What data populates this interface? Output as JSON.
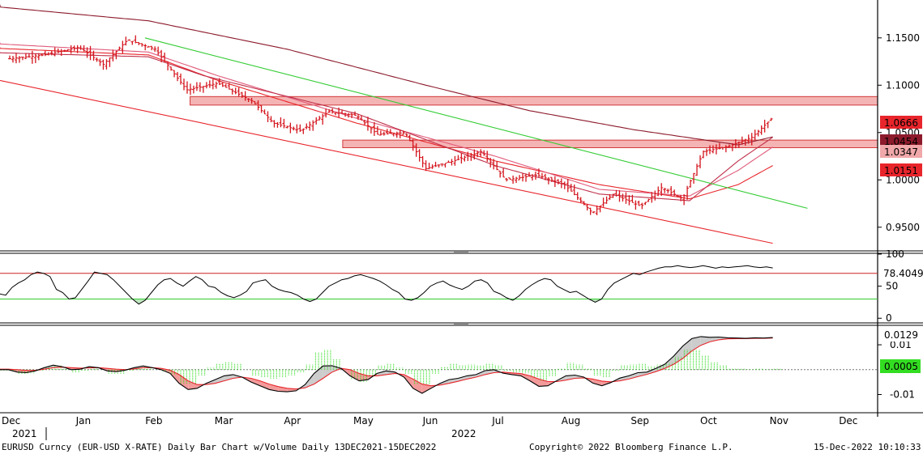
{
  "chart_data": [
    {
      "type": "ohlc",
      "panel": "price",
      "title": "",
      "y_range": [
        0.925,
        1.19
      ],
      "y_ticks": [
        {
          "value": 1.15,
          "label": "1.1500"
        },
        {
          "value": 1.1,
          "label": "1.1000"
        },
        {
          "value": 1.05,
          "label": "1.0500"
        },
        {
          "value": 1.0,
          "label": "1.0000"
        },
        {
          "value": 0.95,
          "label": "0.9500"
        }
      ],
      "last_value_badges": [
        {
          "label": "1.0666",
          "value": 1.0666,
          "color": "#e8252b",
          "text_color": "#ffffff"
        },
        {
          "label": "1.0454",
          "value": 1.0454,
          "color": "#8c1a2b",
          "text_color": "#ffffff"
        },
        {
          "label": "1.0347",
          "value": 1.0347,
          "color": "#f0a8aa",
          "text_color": "#000000"
        },
        {
          "label": "1.0151",
          "value": 1.0151,
          "color": "#e8252b",
          "text_color": "#ffffff"
        }
      ],
      "price_path": [
        {
          "month": 0.0,
          "price": 1.128
        },
        {
          "month": 0.5,
          "price": 1.132
        },
        {
          "month": 1.0,
          "price": 1.14
        },
        {
          "month": 1.35,
          "price": 1.122
        },
        {
          "month": 1.7,
          "price": 1.148
        },
        {
          "month": 2.1,
          "price": 1.138
        },
        {
          "month": 2.55,
          "price": 1.095
        },
        {
          "month": 3.0,
          "price": 1.102
        },
        {
          "month": 3.5,
          "price": 1.083
        },
        {
          "month": 3.8,
          "price": 1.06
        },
        {
          "month": 4.2,
          "price": 1.052
        },
        {
          "month": 4.6,
          "price": 1.072
        },
        {
          "month": 5.0,
          "price": 1.068
        },
        {
          "month": 5.3,
          "price": 1.048
        },
        {
          "month": 5.7,
          "price": 1.05
        },
        {
          "month": 6.0,
          "price": 1.012
        },
        {
          "month": 6.4,
          "price": 1.02
        },
        {
          "month": 6.8,
          "price": 1.03
        },
        {
          "month": 7.15,
          "price": 1.0
        },
        {
          "month": 7.6,
          "price": 1.005
        },
        {
          "month": 8.0,
          "price": 0.995
        },
        {
          "month": 8.4,
          "price": 0.965
        },
        {
          "month": 8.7,
          "price": 0.985
        },
        {
          "month": 9.1,
          "price": 0.972
        },
        {
          "month": 9.4,
          "price": 0.992
        },
        {
          "month": 9.7,
          "price": 0.98
        },
        {
          "month": 10.0,
          "price": 1.03
        },
        {
          "month": 10.35,
          "price": 1.035
        },
        {
          "month": 10.7,
          "price": 1.045
        },
        {
          "month": 11.0,
          "price": 1.066
        }
      ],
      "moving_averages": [
        {
          "name": "",
          "color": "#8c1a2b",
          "points": [
            [
              -0.5,
              1.185
            ],
            [
              2,
              1.168
            ],
            [
              4,
              1.138
            ],
            [
              6,
              1.1
            ],
            [
              7.5,
              1.073
            ],
            [
              9,
              1.053
            ],
            [
              10.5,
              1.037
            ],
            [
              11,
              1.0454
            ]
          ]
        },
        {
          "name": "",
          "color": "#e8252b",
          "points": [
            [
              -0.5,
              1.14
            ],
            [
              2,
              1.132
            ],
            [
              3,
              1.105
            ],
            [
              5,
              1.06
            ],
            [
              7,
              1.02
            ],
            [
              8.5,
              0.995
            ],
            [
              9.8,
              0.98
            ],
            [
              10.5,
              0.995
            ],
            [
              11,
              1.0151
            ]
          ]
        },
        {
          "name": "",
          "color": "#e05a7a",
          "points": [
            [
              -0.5,
              1.145
            ],
            [
              2,
              1.135
            ],
            [
              3,
              1.11
            ],
            [
              5,
              1.065
            ],
            [
              7,
              1.025
            ],
            [
              8.5,
              0.99
            ],
            [
              9.8,
              0.983
            ],
            [
              10.5,
              1.01
            ],
            [
              11,
              1.0347
            ]
          ]
        },
        {
          "name": "",
          "color": "#c0304a",
          "points": [
            [
              -0.5,
              1.135
            ],
            [
              2,
              1.13
            ],
            [
              2.8,
              1.11
            ],
            [
              5,
              1.07
            ],
            [
              7,
              1.015
            ],
            [
              8.5,
              0.985
            ],
            [
              9.8,
              0.978
            ],
            [
              10.5,
              1.02
            ],
            [
              11,
              1.045
            ]
          ]
        }
      ],
      "trendlines": [
        {
          "color": "#33cc33",
          "from": [
            1.95,
            1.15
          ],
          "to": [
            11.5,
            0.97
          ]
        },
        {
          "color": "#e8252b",
          "from": [
            -0.5,
            1.105
          ],
          "to": [
            11.0,
            0.933
          ]
        }
      ],
      "zones": [
        {
          "color": "#f5b4b4",
          "y": [
            1.079,
            1.088
          ],
          "from": 2.6
        },
        {
          "color": "#f5b4b4",
          "y": [
            1.034,
            1.042
          ],
          "from": 4.8
        }
      ]
    },
    {
      "type": "line",
      "panel": "rsi",
      "y_range": [
        -6,
        100
      ],
      "y_ticks": [
        {
          "value": 100,
          "label": "100"
        },
        {
          "value": 50,
          "label": "50"
        },
        {
          "value": 0,
          "label": "0"
        }
      ],
      "last_value_label": "78.4049",
      "last_value": 78.4049,
      "upper_band": 70,
      "lower_band": 30,
      "values": [
        38,
        36,
        48,
        55,
        60,
        68,
        72,
        70,
        65,
        45,
        40,
        30,
        32,
        45,
        58,
        72,
        70,
        68,
        60,
        50,
        40,
        30,
        22,
        28,
        40,
        52,
        60,
        62,
        55,
        50,
        58,
        65,
        60,
        50,
        48,
        40,
        35,
        32,
        36,
        42,
        55,
        58,
        60,
        50,
        45,
        42,
        40,
        36,
        30,
        26,
        30,
        40,
        50,
        55,
        60,
        62,
        66,
        68,
        65,
        62,
        58,
        52,
        45,
        40,
        30,
        28,
        32,
        40,
        50,
        55,
        58,
        52,
        48,
        45,
        50,
        58,
        60,
        55,
        42,
        38,
        32,
        28,
        35,
        45,
        52,
        58,
        62,
        60,
        50,
        45,
        40,
        42,
        36,
        30,
        25,
        30,
        45,
        55,
        60,
        65,
        70,
        68,
        72,
        75,
        78,
        80,
        80,
        82,
        80,
        79,
        80,
        82,
        80,
        78,
        80,
        79,
        80,
        81,
        82,
        80,
        79,
        80,
        78.4
      ]
    },
    {
      "type": "line",
      "panel": "macd",
      "y_range": [
        -0.017,
        0.0175
      ],
      "y_ticks": [
        {
          "value": 0.01,
          "label": "0.01"
        },
        {
          "value": -0.01,
          "label": "-0.01"
        }
      ],
      "labels": [
        {
          "label": "0.0129",
          "value": 0.0129
        },
        {
          "label": "0.0005",
          "value": 0.0005
        }
      ],
      "macd_line": [
        0.0,
        0.0,
        -0.001,
        -0.0012,
        -0.0005,
        0.0008,
        0.0018,
        0.0012,
        0.0,
        0.0002,
        0.0012,
        0.0008,
        -0.0005,
        -0.0008,
        -0.0002,
        0.0008,
        0.0015,
        0.0008,
        0.0,
        -0.0015,
        -0.0055,
        -0.008,
        -0.0075,
        -0.0055,
        -0.004,
        -0.0025,
        -0.002,
        -0.003,
        -0.005,
        -0.0065,
        -0.008,
        -0.0087,
        -0.0089,
        -0.0085,
        -0.006,
        -0.0015,
        0.0015,
        0.0016,
        0.0005,
        -0.0025,
        -0.0045,
        -0.004,
        -0.0015,
        -0.0005,
        -0.001,
        -0.003,
        -0.0075,
        -0.0095,
        -0.0075,
        -0.0055,
        -0.004,
        -0.0035,
        -0.0025,
        -0.002,
        -0.0004,
        0.0,
        -0.0014,
        -0.002,
        -0.0025,
        -0.0045,
        -0.0067,
        -0.0065,
        -0.0044,
        -0.0025,
        -0.0022,
        -0.003,
        -0.0054,
        -0.0065,
        -0.0052,
        -0.0034,
        -0.0025,
        -0.0012,
        -0.001,
        0.0005,
        0.0022,
        0.0055,
        0.0095,
        0.0125,
        0.0133,
        0.013,
        0.0131,
        0.0128,
        0.0127,
        0.0126,
        0.0128,
        0.0127,
        0.0129
      ],
      "signal_line": [
        0.0002,
        0.0002,
        0.0,
        -0.0003,
        -0.0003,
        0.0002,
        0.0008,
        0.001,
        0.0008,
        0.0006,
        0.0007,
        0.0008,
        0.0005,
        0.0002,
        0.0,
        0.0003,
        0.0008,
        0.0008,
        0.0005,
        -0.0002,
        -0.002,
        -0.0045,
        -0.006,
        -0.006,
        -0.0055,
        -0.0045,
        -0.0035,
        -0.003,
        -0.0035,
        -0.0045,
        -0.0058,
        -0.0068,
        -0.0075,
        -0.0078,
        -0.0073,
        -0.0058,
        -0.0035,
        -0.001,
        0.0005,
        0.0,
        -0.0015,
        -0.0025,
        -0.0025,
        -0.002,
        -0.0015,
        -0.002,
        -0.0038,
        -0.0058,
        -0.0065,
        -0.0062,
        -0.0055,
        -0.0047,
        -0.0038,
        -0.003,
        -0.002,
        -0.0012,
        -0.001,
        -0.0013,
        -0.0016,
        -0.0025,
        -0.0038,
        -0.0048,
        -0.0048,
        -0.0042,
        -0.0035,
        -0.0033,
        -0.0038,
        -0.0046,
        -0.0049,
        -0.0045,
        -0.0038,
        -0.0028,
        -0.0019,
        -0.0008,
        0.0005,
        0.0022,
        0.0045,
        0.0075,
        0.0098,
        0.0112,
        0.012,
        0.0124,
        0.0125,
        0.0125,
        0.0126,
        0.0126,
        0.0127
      ]
    }
  ],
  "x_axis": {
    "month_ticks": [
      "Dec",
      "Jan",
      "Feb",
      "Mar",
      "Apr",
      "May",
      "Jun",
      "Jul",
      "Aug",
      "Sep",
      "Oct",
      "Nov",
      "Dec"
    ],
    "year_labels": [
      "2021",
      "2022"
    ]
  },
  "footer": {
    "description": "EURUSD Curncy (EUR-USD X-RATE) Daily Bar Chart w/Volume  Daily 13DEC2021-15DEC2022",
    "copyright": "Copyright© 2022 Bloomberg Finance L.P.",
    "timestamp": "15-Dec-2022 10:10:33"
  },
  "colors": {
    "bars": "#d4151d",
    "upper_band": "#cc2222",
    "lower_band": "#33cc33",
    "histogram": "#33dd22",
    "macd": "#000000",
    "signal": "#e8252b",
    "fill_up": "#cccccc",
    "fill_down": "#f39a9a"
  }
}
